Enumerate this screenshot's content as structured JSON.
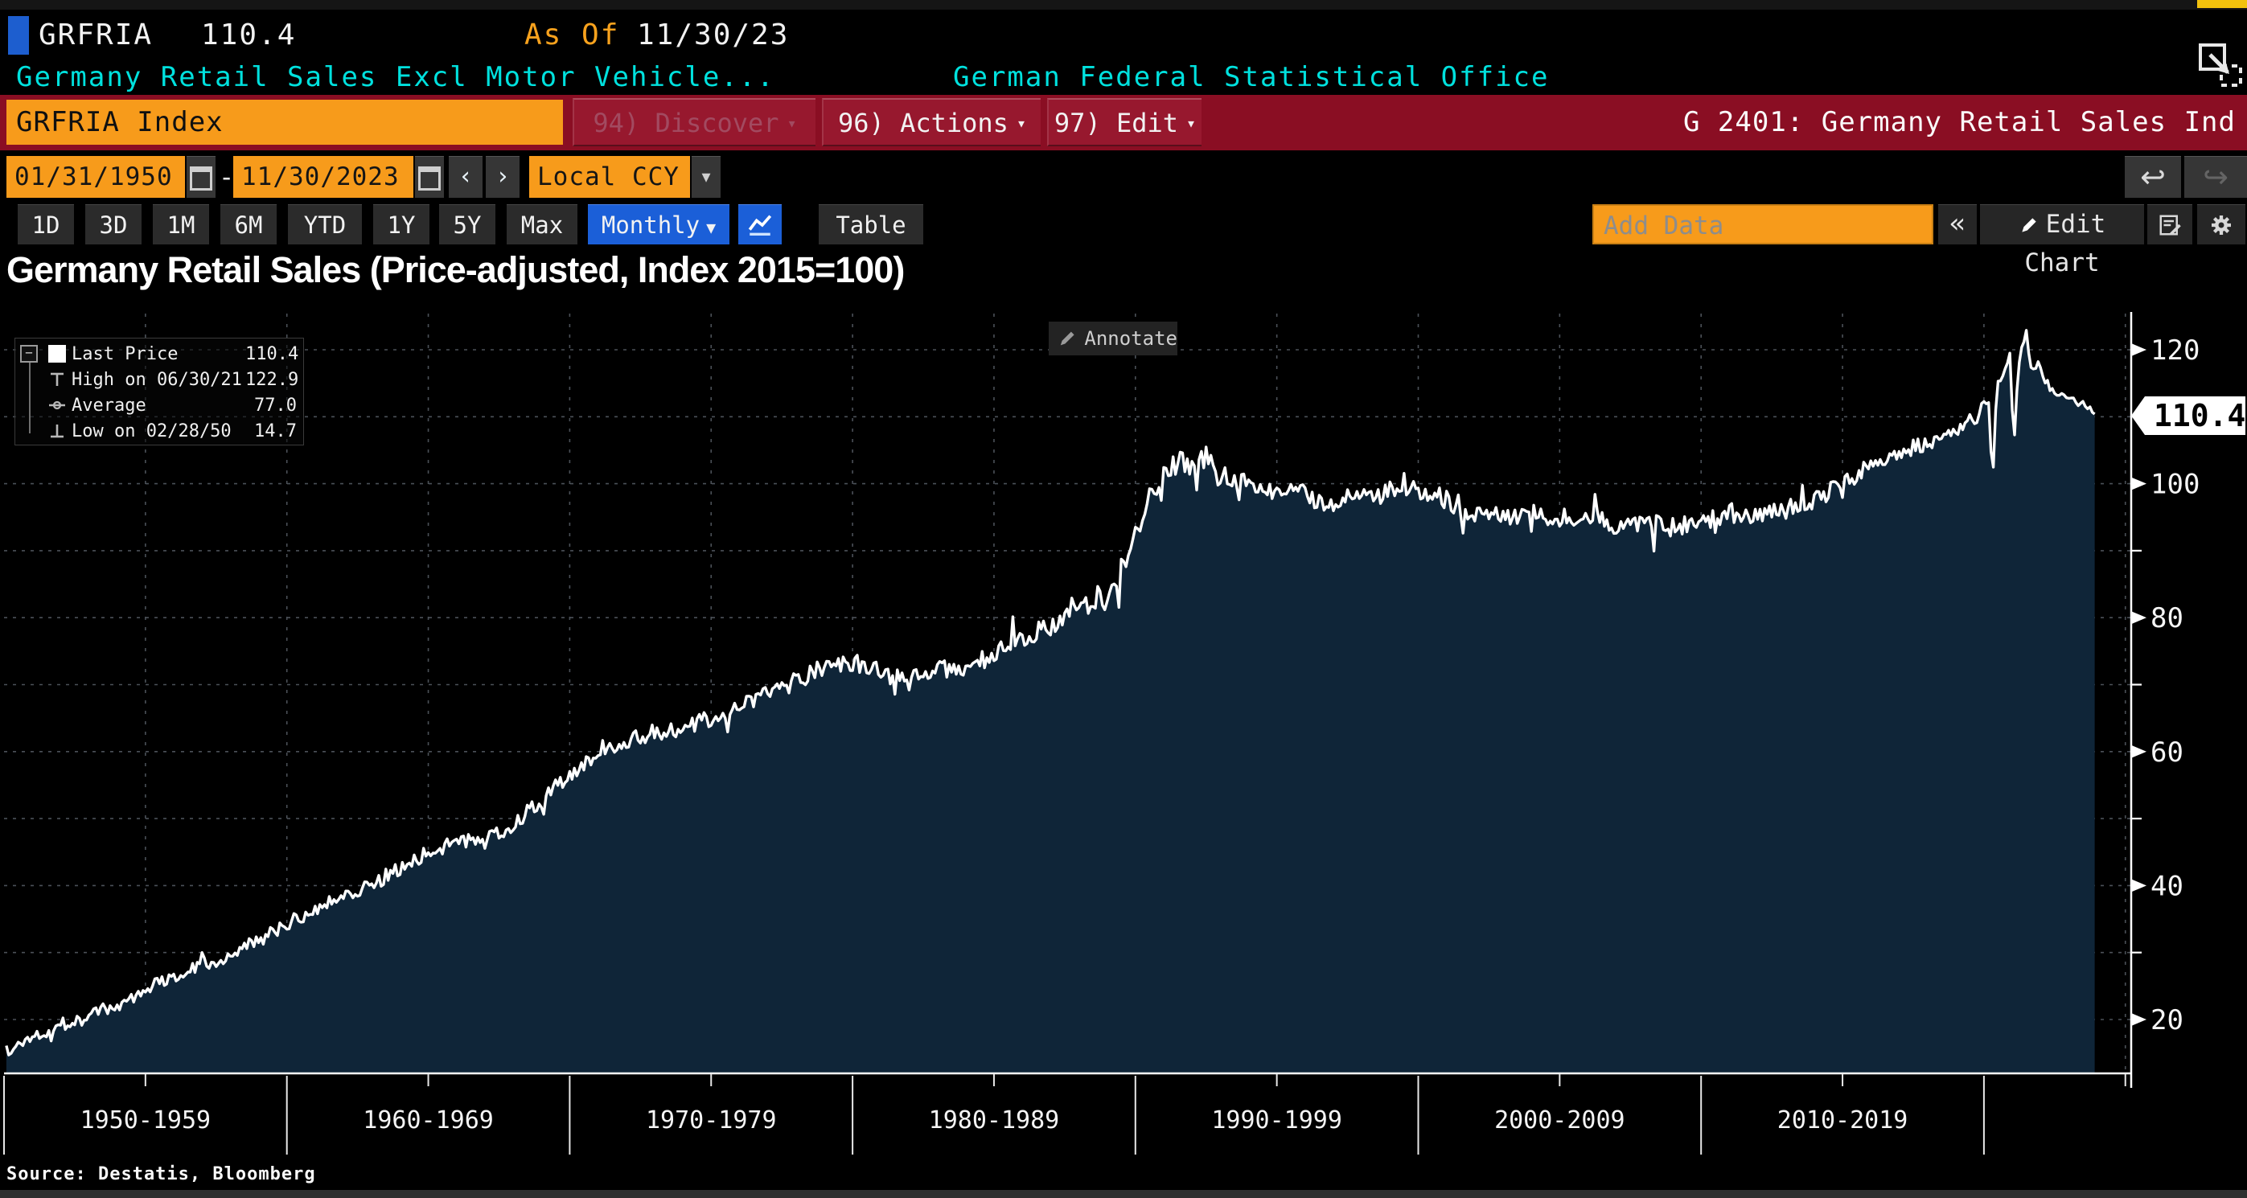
{
  "header": {
    "ticker": "GRFRIA",
    "last_price": "110.4",
    "as_of_label": "As Of",
    "as_of_date": "11/30/23",
    "security_name": "Germany Retail Sales Excl Motor Vehicle...",
    "security_source": "German Federal Statistical Office"
  },
  "toolbar": {
    "ticker_field": "GRFRIA Index",
    "discover_label": "94) Discover",
    "actions_label": "96) Actions",
    "edit_label": "97) Edit",
    "dropdown_caret": "▾",
    "chart_id_label": "G 2401: Germany Retail Sales Ind"
  },
  "controls": {
    "date_from": "01/31/1950",
    "date_separator": "-",
    "date_to": "11/30/2023",
    "prev_label": "‹",
    "next_label": "›",
    "currency": "Local CCY",
    "dropdown_caret": "▾",
    "undo_label": "↩",
    "redo_label": "↪"
  },
  "tabs": {
    "periods": [
      "1D",
      "3D",
      "1M",
      "6M",
      "YTD",
      "1Y",
      "5Y",
      "Max"
    ],
    "frequency": "Monthly",
    "frequency_caret": "▼",
    "table_label": "Table",
    "add_data_placeholder": "Add Data",
    "collapse_label": "«",
    "edit_chart_label": "Edit Chart"
  },
  "chart": {
    "title": "Germany Retail Sales (Price-adjusted, Index 2015=100)",
    "annotate_label": "Annotate",
    "last_price_badge": "110.4",
    "source_note": "Source: Destatis, Bloomberg",
    "legend": [
      {
        "icon": "swatch",
        "label": "Last Price",
        "value": "110.4"
      },
      {
        "icon": "high",
        "label": "High on 06/30/21",
        "value": "122.9"
      },
      {
        "icon": "average",
        "label": "Average",
        "value": "77.0"
      },
      {
        "icon": "low",
        "label": "Low on 02/28/50",
        "value": "14.7"
      }
    ]
  },
  "chart_data": {
    "type": "area",
    "title": "Germany Retail Sales (Price-adjusted, Index 2015=100)",
    "series_name": "GRFRIA Index Last Price",
    "frequency": "monthly",
    "x_range": [
      1950.083,
      2023.917
    ],
    "ylim": [
      12,
      126
    ],
    "y_ticks": [
      20,
      40,
      60,
      80,
      100,
      120
    ],
    "y_minor_step": 10,
    "x_gridline_step_years": 5,
    "x_decade_labels": [
      "1950-1959",
      "1960-1969",
      "1970-1979",
      "1980-1989",
      "1990-1999",
      "2000-2009",
      "2010-2019"
    ],
    "key_points": {
      "last": {
        "date": "11/30/23",
        "value": 110.4
      },
      "high": {
        "date": "06/30/21",
        "value": 122.9
      },
      "average": 77.0,
      "low": {
        "date": "02/28/50",
        "value": 14.7
      }
    },
    "anchors": [
      [
        1950.08,
        16.8
      ],
      [
        1950.17,
        14.7
      ],
      [
        1950.5,
        16.3
      ],
      [
        1951,
        17.5
      ],
      [
        1952,
        19.2
      ],
      [
        1953,
        20.6
      ],
      [
        1954,
        22.2
      ],
      [
        1955,
        24.6
      ],
      [
        1956,
        26.6
      ],
      [
        1957,
        28.2
      ],
      [
        1958,
        29.6
      ],
      [
        1959,
        31.8
      ],
      [
        1960,
        34.2
      ],
      [
        1961,
        36.6
      ],
      [
        1962,
        38.6
      ],
      [
        1963,
        40.2
      ],
      [
        1964,
        42.6
      ],
      [
        1965,
        45.0
      ],
      [
        1966,
        46.6
      ],
      [
        1967,
        46.6
      ],
      [
        1968,
        49.2
      ],
      [
        1969,
        52.6
      ],
      [
        1970,
        56.6
      ],
      [
        1971,
        59.6
      ],
      [
        1972,
        61.6
      ],
      [
        1973,
        63.0
      ],
      [
        1974,
        63.4
      ],
      [
        1975,
        65.0
      ],
      [
        1976,
        66.6
      ],
      [
        1977,
        68.6
      ],
      [
        1978,
        70.6
      ],
      [
        1979,
        72.6
      ],
      [
        1980,
        73.2
      ],
      [
        1981,
        71.6
      ],
      [
        1982,
        70.6
      ],
      [
        1983,
        72.0
      ],
      [
        1984,
        72.6
      ],
      [
        1985,
        74.2
      ],
      [
        1986,
        77.0
      ],
      [
        1987,
        79.0
      ],
      [
        1988,
        80.6
      ],
      [
        1989,
        84.0
      ],
      [
        1989.5,
        87.0
      ],
      [
        1990,
        93.0
      ],
      [
        1990.5,
        97.5
      ],
      [
        1991,
        101.0
      ],
      [
        1991.5,
        103.5
      ],
      [
        1992,
        102.5
      ],
      [
        1992.5,
        103.8
      ],
      [
        1993,
        100.8
      ],
      [
        1994,
        100.6
      ],
      [
        1995,
        99.0
      ],
      [
        1996,
        98.2
      ],
      [
        1997,
        97.2
      ],
      [
        1998,
        98.0
      ],
      [
        1999,
        98.8
      ],
      [
        2000,
        99.4
      ],
      [
        2001,
        97.6
      ],
      [
        2002,
        95.8
      ],
      [
        2003,
        95.0
      ],
      [
        2004,
        95.4
      ],
      [
        2005,
        95.0
      ],
      [
        2006,
        95.6
      ],
      [
        2007,
        93.6
      ],
      [
        2008,
        94.6
      ],
      [
        2009,
        93.6
      ],
      [
        2010,
        94.2
      ],
      [
        2011,
        95.4
      ],
      [
        2012,
        95.6
      ],
      [
        2013,
        96.2
      ],
      [
        2014,
        97.6
      ],
      [
        2015,
        100.0
      ],
      [
        2016,
        102.6
      ],
      [
        2017,
        104.6
      ],
      [
        2018,
        106.0
      ],
      [
        2019,
        107.6
      ],
      [
        2019.75,
        110.0
      ],
      [
        2020.05,
        113.0
      ],
      [
        2020.21,
        112.0
      ],
      [
        2020.29,
        97.5
      ],
      [
        2020.45,
        115.0
      ],
      [
        2020.7,
        116.5
      ],
      [
        2020.95,
        119.5
      ],
      [
        2021.04,
        104.5
      ],
      [
        2021.2,
        117.0
      ],
      [
        2021.46,
        122.9
      ],
      [
        2021.7,
        116.5
      ],
      [
        2021.95,
        118.5
      ],
      [
        2022.1,
        116.0
      ],
      [
        2022.3,
        114.5
      ],
      [
        2022.5,
        113.5
      ],
      [
        2022.75,
        113.8
      ],
      [
        2023.0,
        112.8
      ],
      [
        2023.25,
        112.2
      ],
      [
        2023.5,
        111.8
      ],
      [
        2023.75,
        111.2
      ],
      [
        2023.92,
        110.4
      ]
    ],
    "noise_amplitude": [
      [
        1950,
        1.0
      ],
      [
        1965,
        1.1
      ],
      [
        1975,
        1.3
      ],
      [
        1990,
        1.8
      ],
      [
        1995,
        1.6
      ],
      [
        2010,
        1.5
      ],
      [
        2019,
        1.2
      ],
      [
        2023.92,
        1.4
      ]
    ],
    "colors": {
      "background": "#000000",
      "line": "#ffffff",
      "fill": "#0f2538",
      "grid": "#4b5158",
      "axis": "#ffffff",
      "accent_orange": "#f79b1b",
      "accent_red": "#8a0e23",
      "accent_blue": "#1b5fd8",
      "accent_cyan": "#00e1de"
    }
  }
}
